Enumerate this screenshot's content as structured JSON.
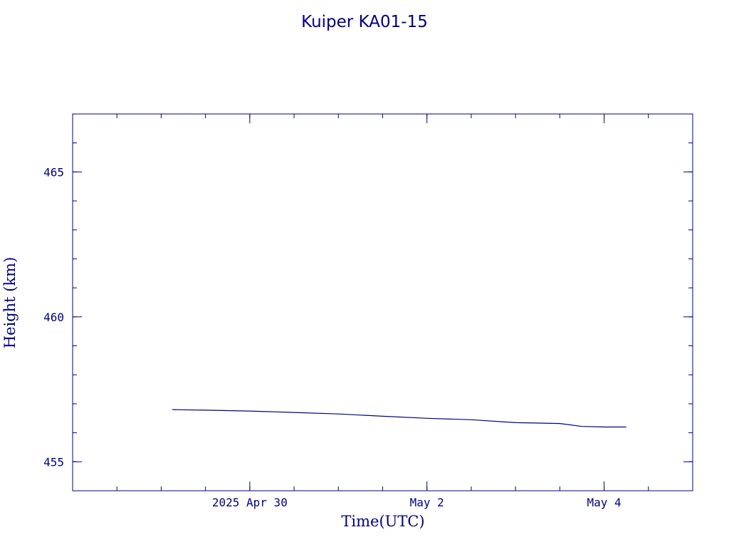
{
  "colors": {
    "ink": "#000080",
    "background": "#ffffff"
  },
  "chart_data": {
    "type": "line",
    "title": "Kuiper KA01-15",
    "xlabel": "Time(UTC)",
    "ylabel": "Height (km)",
    "x_unit": "hours since 2025 Apr 29 00:00 UTC",
    "xlim": [
      -24,
      144
    ],
    "ylim": [
      454,
      467
    ],
    "y_ticks": [
      455,
      460,
      465
    ],
    "x_ticks": [
      {
        "x": 24,
        "label": "2025 Apr 30"
      },
      {
        "x": 72,
        "label": "May  2"
      },
      {
        "x": 120,
        "label": "May  4"
      }
    ],
    "x_minor_step_hours": 12,
    "y_minor_step": 1,
    "grid": false,
    "legend": "none",
    "series": [
      {
        "x": [
          3,
          12,
          24,
          36,
          48,
          60,
          72,
          84,
          96,
          108,
          114,
          120,
          126
        ],
        "y": [
          456.8,
          456.78,
          456.75,
          456.7,
          456.65,
          456.57,
          456.5,
          456.45,
          456.35,
          456.32,
          456.22,
          456.2,
          456.2
        ]
      }
    ]
  }
}
